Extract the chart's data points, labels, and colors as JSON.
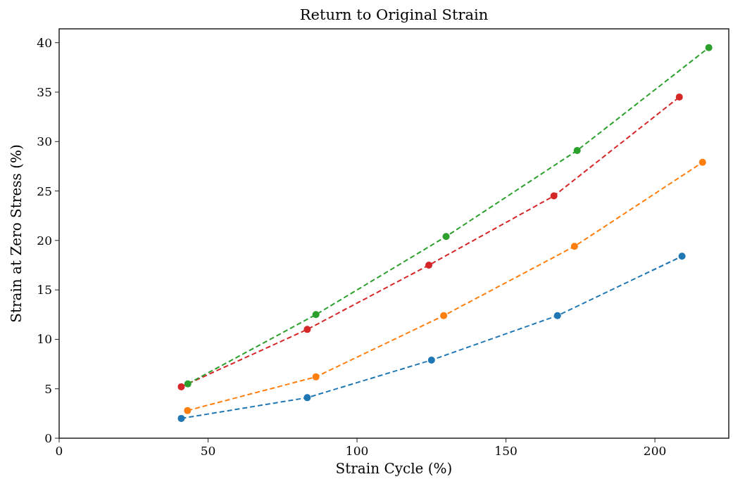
{
  "chart_data": {
    "type": "line",
    "title": "Return to Original Strain",
    "xlabel": "Strain Cycle (%)",
    "ylabel": "Strain at Zero Stress (%)",
    "xlim": [
      0,
      224.8
    ],
    "xticks": [
      0,
      50,
      100,
      150,
      200
    ],
    "ylim": [
      0,
      41.4
    ],
    "yticks": [
      0,
      5,
      10,
      15,
      20,
      25,
      30,
      35,
      40
    ],
    "grid": false,
    "marker": "circle",
    "line_style": "dashed",
    "series": [
      {
        "color": "#1f77b4",
        "x": [
          41.0,
          83.3,
          125.0,
          167.3,
          209.1
        ],
        "values": [
          2.0,
          4.1,
          7.9,
          12.4,
          18.4
        ]
      },
      {
        "color": "#ff7f0e",
        "x": [
          43.1,
          86.2,
          129.1,
          173.0,
          216.0
        ],
        "values": [
          2.8,
          6.2,
          12.4,
          19.4,
          27.9
        ]
      },
      {
        "color": "#d62728",
        "x": [
          41.0,
          83.3,
          124.1,
          166.1,
          208.2
        ],
        "values": [
          5.2,
          11.0,
          17.5,
          24.5,
          34.5
        ]
      },
      {
        "color": "#2ca02c",
        "x": [
          43.2,
          86.2,
          129.9,
          173.9,
          218.1
        ],
        "values": [
          5.5,
          12.5,
          20.4,
          29.1,
          39.5
        ]
      }
    ]
  }
}
